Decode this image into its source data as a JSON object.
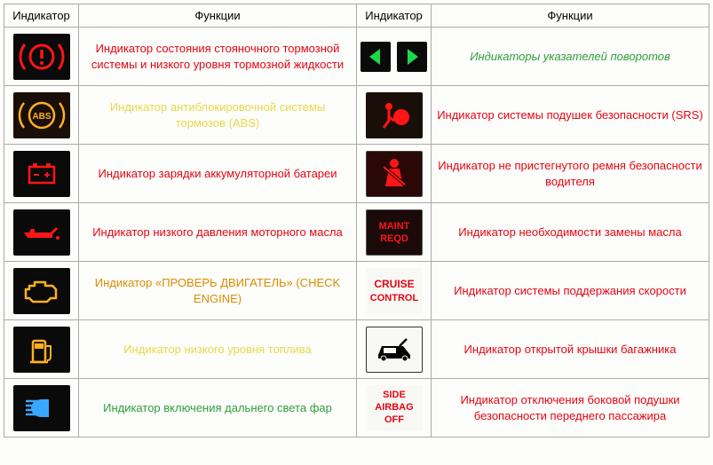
{
  "headers": [
    "Индикатор",
    "Функции",
    "Индикатор",
    "Функции"
  ],
  "colors": {
    "red": "#e30613",
    "orange": "#d98c00",
    "yellow": "#e8d84a",
    "green": "#2e9e3a",
    "green_italic": "#2e9e3a",
    "black": "#000"
  },
  "rows": [
    {
      "left_icon": "brake-warn",
      "left_text": "Индикатор состояния стояночного тормозной системы и низкого уровня тормозной жидкости",
      "left_color": "red",
      "right_icon": "turn-signals",
      "right_text": "Индикаторы указателей поворотов",
      "right_color": "green_italic"
    },
    {
      "left_icon": "abs",
      "left_text": "Индикатор антиблокировочной системы тормозов (ABS)",
      "left_color": "yellow",
      "right_icon": "airbag",
      "right_text": "Индикатор системы подушек безопасности (SRS)",
      "right_color": "red"
    },
    {
      "left_icon": "battery",
      "left_text": "Индикатор зарядки аккумуляторной батареи",
      "left_color": "red",
      "right_icon": "seatbelt",
      "right_text": "Индикатор не пристегнутого ремня безопасности водителя",
      "right_color": "red"
    },
    {
      "left_icon": "oil",
      "left_text": "Индикатор низкого давления моторного масла",
      "left_color": "red",
      "right_icon": "maint-reqd",
      "right_text": "Индикатор необходимости замены масла",
      "right_color": "red"
    },
    {
      "left_icon": "check-engine",
      "left_text": "Индикатор «ПРОВЕРЬ ДВИГАТЕЛЬ» (CHECK ENGINE)",
      "left_color": "orange",
      "right_icon": "cruise",
      "right_text": "Индикатор системы поддержания скорости",
      "right_color": "red"
    },
    {
      "left_icon": "fuel",
      "left_text": "Индикатор низкого уровня топлива",
      "left_color": "yellow",
      "right_icon": "trunk",
      "right_text": "Индикатор открытой крышки багажника",
      "right_color": "red"
    },
    {
      "left_icon": "high-beam",
      "left_text": "Индикатор включения дальнего света фар",
      "left_color": "green",
      "right_icon": "side-airbag",
      "right_text": "Индикатор отключения боковой подушки безопасности переднего пассажира",
      "right_color": "red"
    }
  ],
  "icon_styles": {
    "dark_bg": "#0a0a0a",
    "darker_bg": "#1a0f08",
    "white_bg": "#f8f8f5",
    "red_glow": "#ff1515",
    "amber_glow": "#ffb020",
    "green_glow": "#1fd84a",
    "blue_glow": "#3aa8ff"
  },
  "text_labels": {
    "abs": "ABS",
    "maint": "MAINT\nREQD",
    "cruise": "CRUISE\nCONTROL",
    "side_airbag": "SIDE\nAIRBAG\nOFF"
  }
}
